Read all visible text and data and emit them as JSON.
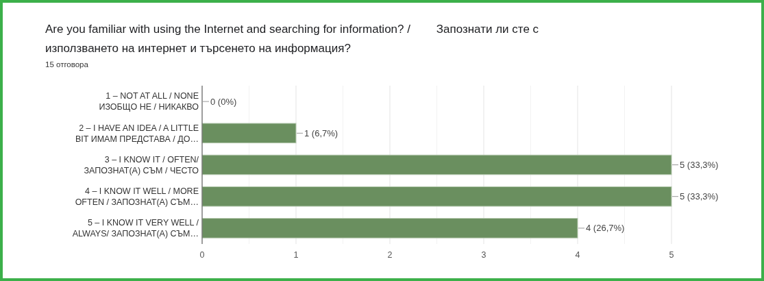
{
  "chart_data": {
    "type": "bar",
    "orientation": "horizontal",
    "title": "Are you familiar with using the Internet and searching for information? /        Запознати ли сте с\nизползването на интернет и търсенето на информация?",
    "subtitle": "15 отговора",
    "categories": [
      "1 – NOT AT ALL / NONE\nИЗОБЩО НЕ / НИКАКВО",
      "2 – I HAVE AN IDEA / A LITTLE\nBIT ИМАМ ПРЕДСТАВА / ДО…",
      "3 – I KNOW IT / OFTEN/\nЗАПОЗНАТ(А) СЪМ / ЧЕСТО",
      "4 – I KNOW IT WELL / MORE\nOFTEN / ЗАПОЗНАТ(А) СЪМ…",
      "5 – I KNOW IT VERY WELL /\nALWAYS/ ЗАПОЗНАТ(А) СЪМ…"
    ],
    "values": [
      0,
      1,
      5,
      5,
      4
    ],
    "value_labels": [
      "0 (0%)",
      "1 (6,7%)",
      "5 (33,3%)",
      "5 (33,3%)",
      "4 (26,7%)"
    ],
    "color": "#6a8f5f",
    "xlim": [
      0,
      5
    ],
    "xticks": [
      0,
      1,
      2,
      3,
      4,
      5
    ],
    "grid": "x"
  }
}
